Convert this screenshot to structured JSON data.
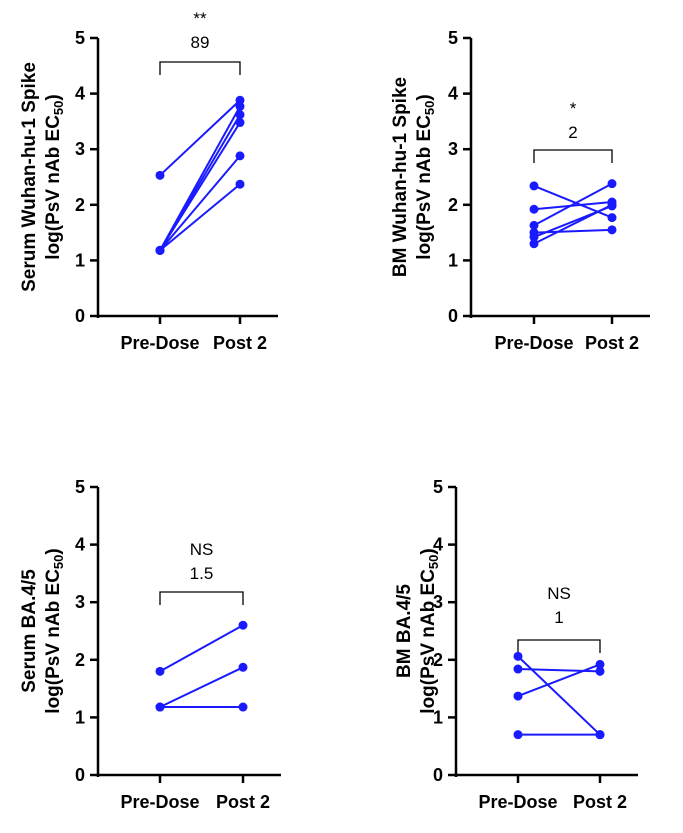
{
  "chart_data": [
    {
      "type": "scatter",
      "panel": "top-left",
      "ylabel": {
        "line1": "Serum Wuhan-hu-1 Spike",
        "line2": "log(PsV nAb EC",
        "sub": "50",
        "close": ")"
      },
      "categories": [
        "Pre-Dose",
        "Post 2"
      ],
      "ylim": [
        0,
        5
      ],
      "yticks": [
        "0",
        "1",
        "2",
        "3",
        "4",
        "5"
      ],
      "pairs": [
        [
          2.53,
          3.88
        ],
        [
          1.18,
          3.77
        ],
        [
          1.18,
          3.62
        ],
        [
          1.18,
          3.48
        ],
        [
          1.18,
          2.88
        ],
        [
          1.18,
          2.37
        ]
      ],
      "significance": "**",
      "fold_change": "89",
      "color": "#1a1aff"
    },
    {
      "type": "scatter",
      "panel": "top-right",
      "ylabel": {
        "line1": "BM Wuhan-hu-1 Spike",
        "line2": "log(PsV nAb EC",
        "sub": "50",
        "close": ")"
      },
      "categories": [
        "Pre-Dose",
        "Post 2"
      ],
      "ylim": [
        0,
        5
      ],
      "yticks": [
        "0",
        "1",
        "2",
        "3",
        "4",
        "5"
      ],
      "pairs": [
        [
          2.34,
          1.77
        ],
        [
          1.92,
          2.05
        ],
        [
          1.63,
          2.38
        ],
        [
          1.5,
          1.55
        ],
        [
          1.42,
          1.98
        ],
        [
          1.3,
          2.0
        ]
      ],
      "significance": "*",
      "fold_change": "2",
      "color": "#1a1aff"
    },
    {
      "type": "scatter",
      "panel": "bottom-left",
      "ylabel": {
        "line1": "Serum BA.4/5",
        "line2": "log(PsV nAb EC",
        "sub": "50",
        "close": ")"
      },
      "categories": [
        "Pre-Dose",
        "Post 2"
      ],
      "ylim": [
        0,
        5
      ],
      "yticks": [
        "0",
        "1",
        "2",
        "3",
        "4",
        "5"
      ],
      "pairs": [
        [
          1.8,
          2.6
        ],
        [
          1.18,
          1.87
        ],
        [
          1.18,
          1.18
        ]
      ],
      "significance": "NS",
      "fold_change": "1.5",
      "color": "#1a1aff"
    },
    {
      "type": "scatter",
      "panel": "bottom-right",
      "ylabel": {
        "line1": "BM BA.4/5",
        "line2": "log(PsV nAb EC",
        "sub": "50",
        "close": ")"
      },
      "categories": [
        "Pre-Dose",
        "Post 2"
      ],
      "ylim": [
        0,
        5
      ],
      "yticks": [
        "0",
        "1",
        "2",
        "3",
        "4",
        "5"
      ],
      "pairs": [
        [
          2.06,
          0.7
        ],
        [
          1.84,
          1.8
        ],
        [
          1.37,
          1.92
        ],
        [
          0.7,
          0.7
        ]
      ],
      "significance": "NS",
      "fold_change": "1",
      "color": "#1a1aff"
    }
  ]
}
